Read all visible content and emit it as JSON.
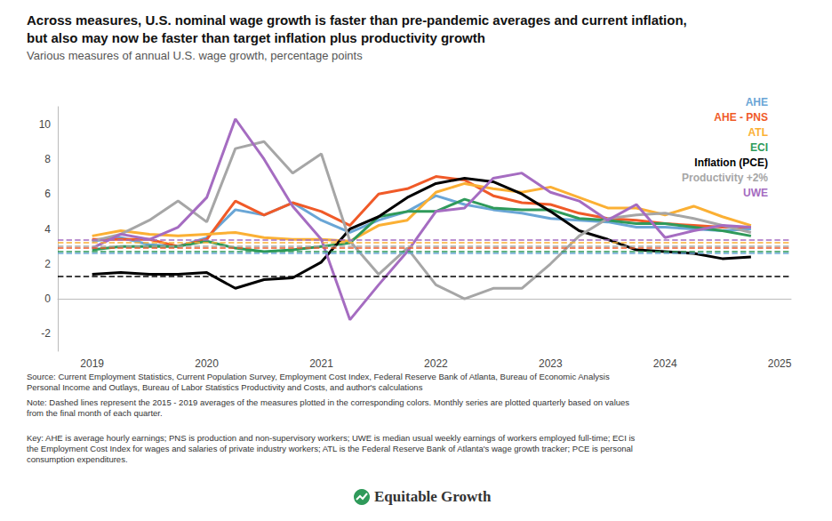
{
  "chart_data": {
    "type": "line",
    "title": "Across measures, U.S. nominal wage growth is faster than pre-pandemic averages and current inflation,\nbut also may now be faster than target inflation plus productivity growth",
    "subtitle": "Various measures of annual U.S. wage growth, percentage points",
    "x": [
      2019,
      2019.25,
      2019.5,
      2019.75,
      2020,
      2020.25,
      2020.5,
      2020.75,
      2021,
      2021.25,
      2021.5,
      2021.75,
      2022,
      2022.25,
      2022.5,
      2022.75,
      2023,
      2023.25,
      2023.5,
      2023.75,
      2024,
      2024.25,
      2024.5,
      2024.75
    ],
    "xlim": [
      2018.7,
      2025.1
    ],
    "xticks": [
      2019,
      2020,
      2021,
      2022,
      2023,
      2024,
      2025
    ],
    "ylim": [
      -3,
      11
    ],
    "yticks": [
      -2,
      0,
      2,
      4,
      6,
      8,
      10
    ],
    "grid": false,
    "legend": "top-right",
    "series": [
      {
        "name": "AHE",
        "color": "#6aa6d6",
        "baseline": 2.6,
        "values": [
          3.3,
          3.5,
          3.1,
          3.0,
          3.5,
          5.1,
          4.8,
          5.5,
          4.5,
          3.8,
          4.5,
          5.0,
          5.9,
          5.4,
          5.1,
          4.9,
          4.6,
          4.5,
          4.4,
          4.1,
          4.1,
          4.0,
          3.9,
          4.0
        ]
      },
      {
        "name": "AHE - PNS",
        "color": "#f05a28",
        "baseline": 2.9,
        "values": [
          3.4,
          3.4,
          3.4,
          3.0,
          3.4,
          5.6,
          4.8,
          5.5,
          5.0,
          4.2,
          6.0,
          6.3,
          7.0,
          6.8,
          5.9,
          5.5,
          5.4,
          4.9,
          4.6,
          4.5,
          4.3,
          4.2,
          4.1,
          4.1
        ]
      },
      {
        "name": "ATL",
        "color": "#fbb034",
        "baseline": 3.2,
        "values": [
          3.6,
          3.9,
          3.7,
          3.6,
          3.7,
          3.8,
          3.5,
          3.4,
          3.4,
          3.3,
          4.2,
          4.5,
          6.1,
          6.6,
          6.3,
          6.1,
          6.4,
          5.8,
          5.2,
          5.2,
          4.8,
          5.3,
          4.7,
          4.2
        ]
      },
      {
        "name": "ECI",
        "color": "#2f9a5a",
        "baseline": 2.7,
        "values": [
          2.8,
          3.0,
          3.0,
          3.0,
          3.3,
          2.9,
          2.7,
          2.8,
          3.0,
          3.2,
          4.7,
          5.0,
          5.0,
          5.7,
          5.2,
          5.1,
          5.1,
          4.6,
          4.5,
          4.3,
          4.3,
          4.1,
          3.9,
          3.6
        ]
      },
      {
        "name": "Inflation (PCE)",
        "color": "#000000",
        "baseline": 1.3,
        "values": [
          1.4,
          1.5,
          1.4,
          1.4,
          1.5,
          0.6,
          1.1,
          1.2,
          2.1,
          4.0,
          4.7,
          5.8,
          6.6,
          6.9,
          6.7,
          6.0,
          5.0,
          3.9,
          3.4,
          2.8,
          2.7,
          2.6,
          2.3,
          2.4
        ]
      },
      {
        "name": "Productivity +2%",
        "color": "#a6a6a6",
        "baseline": 3.0,
        "values": [
          3.3,
          3.7,
          4.5,
          5.6,
          4.4,
          8.6,
          9.0,
          7.2,
          8.3,
          3.3,
          1.4,
          2.9,
          0.8,
          0.0,
          0.6,
          0.6,
          2.0,
          3.6,
          4.6,
          4.8,
          4.9,
          4.6,
          4.2,
          3.8
        ]
      },
      {
        "name": "UWE",
        "color": "#a56cc1",
        "baseline": 3.4,
        "values": [
          2.9,
          3.7,
          3.4,
          4.1,
          5.8,
          10.3,
          8.0,
          5.3,
          3.4,
          -1.2,
          0.8,
          2.7,
          5.0,
          5.2,
          6.9,
          7.2,
          6.1,
          5.6,
          4.5,
          5.4,
          3.5,
          3.9,
          4.2,
          4.1
        ]
      }
    ],
    "notes": [
      "Source: Current Employment Statistics, Current Population Survey, Employment Cost Index, Federal Reserve Bank of Atlanta, Bureau of Economic Analysis Personal Income and Outlays, Bureau of Labor Statistics Productivity and Costs, and author's calculations",
      "Note: Dashed lines represent the 2015 - 2019 averages of the measures plotted in the corresponding colors. Monthly series are plotted quarterly based on values from the final month of each quarter.",
      "Key: AHE is average hourly earnings; PNS is production and non-supervisory workers; UWE is median usual weekly earnings of workers employed full-time; ECI is the Employment Cost Index for wages and salaries of private industry workers; ATL is the Federal Reserve Bank of Atlanta's wage growth tracker; PCE is personal consumption expenditures."
    ],
    "footer": "Equitable Growth"
  }
}
